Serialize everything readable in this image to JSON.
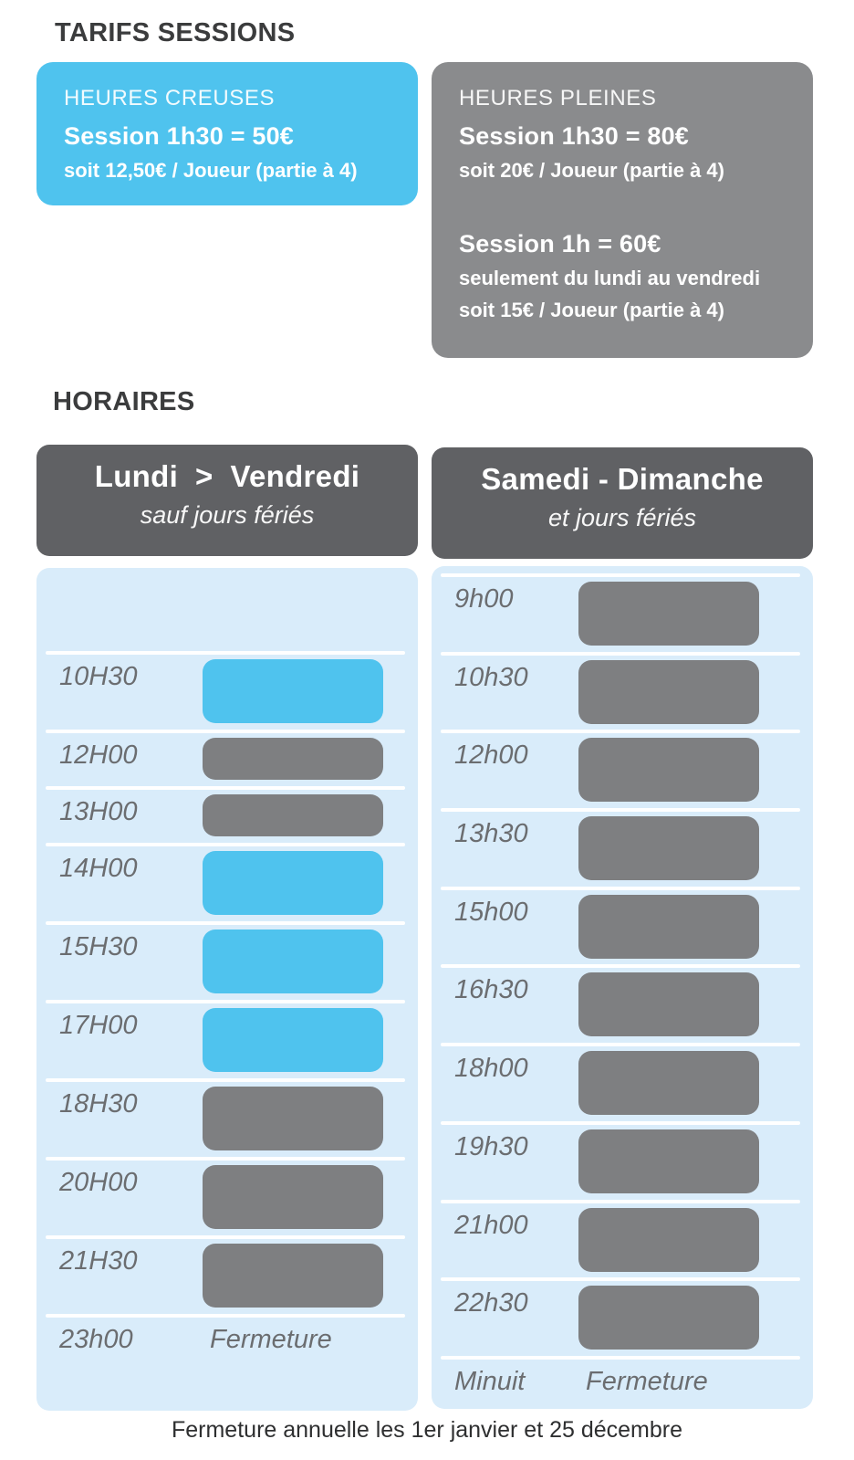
{
  "colors": {
    "accent_blue": "#4FC3EE",
    "panel_blue": "#D9ECFA",
    "bar_gray": "#7E7F81",
    "header_gray": "#606164",
    "card_gray": "#8A8B8D",
    "text_dark": "#3B3C3D",
    "label_gray": "#6B6D70",
    "footer_text": "#2E2F30"
  },
  "tarifs": {
    "heading": "TARIFS SESSIONS",
    "off_peak": {
      "label": "HEURES CREUSES",
      "price": "Session 1h30 = 50€",
      "detail": "soit 12,50€ / Joueur (partie à 4)"
    },
    "peak": {
      "label": "HEURES PLEINES",
      "session1": {
        "price": "Session 1h30 = 80€",
        "detail": "soit 20€ / Joueur (partie à 4)"
      },
      "session2": {
        "price": "Session 1h = 60€",
        "detail1": "seulement du lundi au vendredi",
        "detail2": "soit 15€ / Joueur (partie à 4)"
      }
    }
  },
  "horaires": {
    "heading": "HORAIRES",
    "weekday": {
      "title": "Lundi  >  Vendredi",
      "subtitle": "sauf jours fériés",
      "rows": [
        {
          "time": "",
          "bar": "spacer"
        },
        {
          "time": "10H30",
          "bar": "blue"
        },
        {
          "time": "12H00",
          "bar": "gray-short"
        },
        {
          "time": "13H00",
          "bar": "gray-short"
        },
        {
          "time": "14H00",
          "bar": "blue"
        },
        {
          "time": "15H30",
          "bar": "blue"
        },
        {
          "time": "17H00",
          "bar": "blue"
        },
        {
          "time": "18H30",
          "bar": "gray"
        },
        {
          "time": "20H00",
          "bar": "gray"
        },
        {
          "time": "21H30",
          "bar": "gray"
        },
        {
          "time": "23h00",
          "bar": "none",
          "note": "Fermeture"
        }
      ]
    },
    "weekend": {
      "title": "Samedi - Dimanche",
      "subtitle": "et jours fériés",
      "rows": [
        {
          "time": "9h00",
          "bar": "gray"
        },
        {
          "time": "10h30",
          "bar": "gray"
        },
        {
          "time": "12h00",
          "bar": "gray"
        },
        {
          "time": "13h30",
          "bar": "gray"
        },
        {
          "time": "15h00",
          "bar": "gray"
        },
        {
          "time": "16h30",
          "bar": "gray"
        },
        {
          "time": "18h00",
          "bar": "gray"
        },
        {
          "time": "19h30",
          "bar": "gray"
        },
        {
          "time": "21h00",
          "bar": "gray"
        },
        {
          "time": "22h30",
          "bar": "gray"
        },
        {
          "time": "Minuit",
          "bar": "none",
          "note": "Fermeture"
        }
      ]
    }
  },
  "footer": {
    "text": "Fermeture annuelle les 1er janvier et 25 décembre"
  }
}
